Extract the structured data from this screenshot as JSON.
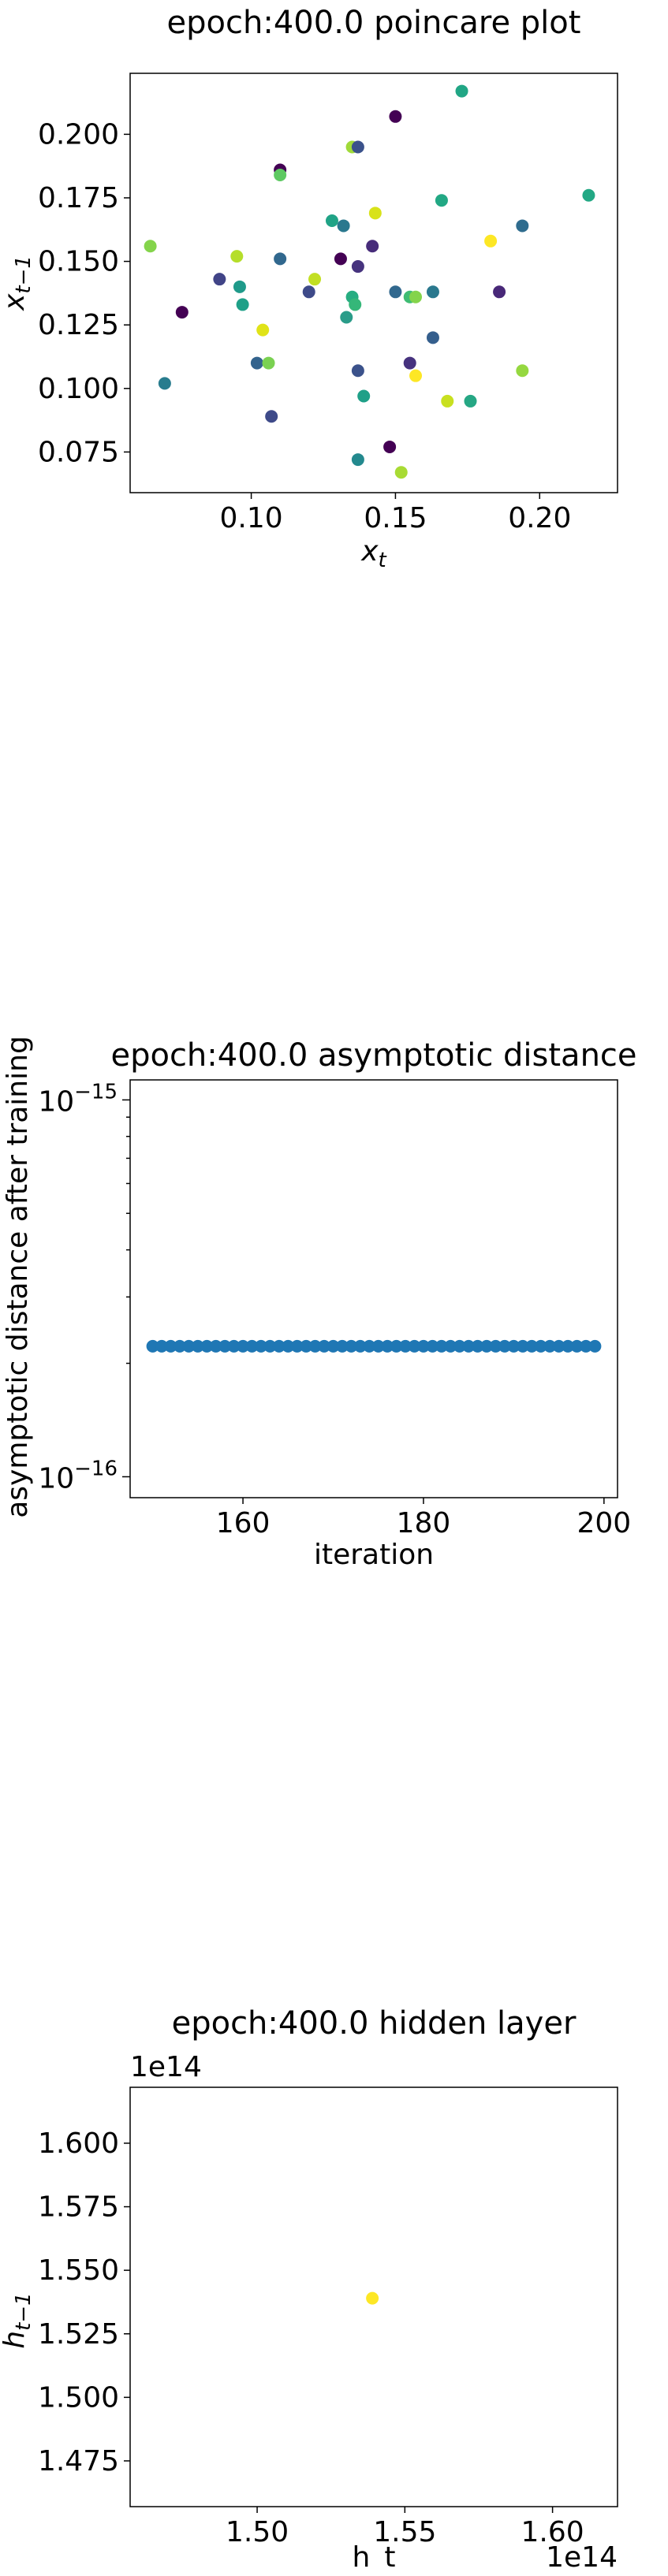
{
  "colors": {
    "single_point": "#2c7bb6",
    "background": "#ffffff",
    "axes": "#000000"
  },
  "chart_data": [
    {
      "type": "scatter",
      "title": "epoch:400.0 poincare plot",
      "xlabel": "x_t",
      "ylabel": "x_{t-1}",
      "xlim": [
        0.058,
        0.227
      ],
      "ylim": [
        0.059,
        0.224
      ],
      "xticks": [
        "0.10",
        "0.15",
        "0.20"
      ],
      "xtick_values": [
        0.1,
        0.15,
        0.2
      ],
      "yticks": [
        "0.075",
        "0.100",
        "0.125",
        "0.150",
        "0.175",
        "0.200"
      ],
      "ytick_values": [
        0.075,
        0.1,
        0.125,
        0.15,
        0.175,
        0.2
      ],
      "grid": false,
      "colormap": "viridis",
      "points": [
        {
          "x": 0.15,
          "y": 0.207,
          "c": "#440154"
        },
        {
          "x": 0.173,
          "y": 0.217,
          "c": "#21a685"
        },
        {
          "x": 0.217,
          "y": 0.176,
          "c": "#22a884"
        },
        {
          "x": 0.11,
          "y": 0.186,
          "c": "#440154"
        },
        {
          "x": 0.11,
          "y": 0.184,
          "c": "#5ec962"
        },
        {
          "x": 0.135,
          "y": 0.195,
          "c": "#a0da39"
        },
        {
          "x": 0.137,
          "y": 0.195,
          "c": "#3b528b"
        },
        {
          "x": 0.128,
          "y": 0.166,
          "c": "#20a386"
        },
        {
          "x": 0.132,
          "y": 0.164,
          "c": "#2a788e"
        },
        {
          "x": 0.143,
          "y": 0.169,
          "c": "#d8e219"
        },
        {
          "x": 0.166,
          "y": 0.174,
          "c": "#22a884"
        },
        {
          "x": 0.194,
          "y": 0.164,
          "c": "#2f6c8e"
        },
        {
          "x": 0.183,
          "y": 0.158,
          "c": "#fde725"
        },
        {
          "x": 0.065,
          "y": 0.156,
          "c": "#84d44b"
        },
        {
          "x": 0.095,
          "y": 0.152,
          "c": "#b5de2b"
        },
        {
          "x": 0.11,
          "y": 0.151,
          "c": "#31688e"
        },
        {
          "x": 0.131,
          "y": 0.151,
          "c": "#440154"
        },
        {
          "x": 0.142,
          "y": 0.156,
          "c": "#472c7a"
        },
        {
          "x": 0.137,
          "y": 0.148,
          "c": "#46337e"
        },
        {
          "x": 0.089,
          "y": 0.143,
          "c": "#414487"
        },
        {
          "x": 0.096,
          "y": 0.14,
          "c": "#1f9a8a"
        },
        {
          "x": 0.122,
          "y": 0.143,
          "c": "#c2df23"
        },
        {
          "x": 0.076,
          "y": 0.13,
          "c": "#440154"
        },
        {
          "x": 0.097,
          "y": 0.133,
          "c": "#1fa088"
        },
        {
          "x": 0.12,
          "y": 0.138,
          "c": "#3e4a89"
        },
        {
          "x": 0.135,
          "y": 0.136,
          "c": "#27ad81"
        },
        {
          "x": 0.136,
          "y": 0.133,
          "c": "#35b779"
        },
        {
          "x": 0.15,
          "y": 0.138,
          "c": "#31688e"
        },
        {
          "x": 0.155,
          "y": 0.136,
          "c": "#3fbc73"
        },
        {
          "x": 0.157,
          "y": 0.136,
          "c": "#84d44b"
        },
        {
          "x": 0.163,
          "y": 0.138,
          "c": "#2a788e"
        },
        {
          "x": 0.186,
          "y": 0.138,
          "c": "#482878"
        },
        {
          "x": 0.133,
          "y": 0.128,
          "c": "#2a9c89"
        },
        {
          "x": 0.104,
          "y": 0.123,
          "c": "#e0e318"
        },
        {
          "x": 0.163,
          "y": 0.12,
          "c": "#355f8d"
        },
        {
          "x": 0.07,
          "y": 0.102,
          "c": "#287c8e"
        },
        {
          "x": 0.102,
          "y": 0.11,
          "c": "#33638d"
        },
        {
          "x": 0.106,
          "y": 0.11,
          "c": "#7ad151"
        },
        {
          "x": 0.137,
          "y": 0.107,
          "c": "#3b528b"
        },
        {
          "x": 0.155,
          "y": 0.11,
          "c": "#46327e"
        },
        {
          "x": 0.157,
          "y": 0.105,
          "c": "#fde725"
        },
        {
          "x": 0.194,
          "y": 0.107,
          "c": "#95d840"
        },
        {
          "x": 0.139,
          "y": 0.097,
          "c": "#1fa088"
        },
        {
          "x": 0.168,
          "y": 0.095,
          "c": "#c8e020"
        },
        {
          "x": 0.176,
          "y": 0.095,
          "c": "#26a784"
        },
        {
          "x": 0.107,
          "y": 0.089,
          "c": "#3e4a89"
        },
        {
          "x": 0.148,
          "y": 0.077,
          "c": "#440154"
        },
        {
          "x": 0.137,
          "y": 0.072,
          "c": "#23898e"
        },
        {
          "x": 0.152,
          "y": 0.067,
          "c": "#a8db34"
        }
      ]
    },
    {
      "type": "scatter",
      "title": "epoch:400.0 asymptotic distance",
      "xlabel": "iteration",
      "ylabel": "asymptotic distance after training",
      "xlim": [
        147.5,
        201.5
      ],
      "yscale": "log",
      "ylim": [
        8.8e-17,
        1.13e-15
      ],
      "xticks": [
        "160",
        "180",
        "200"
      ],
      "xtick_values": [
        160,
        180,
        200
      ],
      "ytick_labels": [
        {
          "base": "10",
          "exp": "−15",
          "value": 1e-15
        },
        {
          "base": "10",
          "exp": "−16",
          "value": 1e-16
        }
      ],
      "grid": false,
      "x": [
        150,
        151,
        152,
        153,
        154,
        155,
        156,
        157,
        158,
        159,
        160,
        161,
        162,
        163,
        164,
        165,
        166,
        167,
        168,
        169,
        170,
        171,
        172,
        173,
        174,
        175,
        176,
        177,
        178,
        179,
        180,
        181,
        182,
        183,
        184,
        185,
        186,
        187,
        188,
        189,
        190,
        191,
        192,
        193,
        194,
        195,
        196,
        197,
        198,
        199
      ],
      "y_value": 2.22e-16,
      "point_color": "#1f77b4"
    },
    {
      "type": "scatter",
      "title": "epoch:400.0 hidden layer",
      "xlabel": "h_t",
      "ylabel": "h_{t-1}",
      "x_offset_label": "1e14",
      "y_offset_label": "1e14",
      "xlim": [
        1.457,
        1.622
      ],
      "ylim": [
        1.457,
        1.622
      ],
      "xticks": [
        "1.50",
        "1.55",
        "1.60"
      ],
      "xtick_values": [
        1.5,
        1.55,
        1.6
      ],
      "yticks": [
        "1.475",
        "1.500",
        "1.525",
        "1.550",
        "1.575",
        "1.600"
      ],
      "ytick_values": [
        1.475,
        1.5,
        1.525,
        1.55,
        1.575,
        1.6
      ],
      "grid": false,
      "points": [
        {
          "x": 1.539,
          "y": 1.539,
          "c": "#fde725"
        }
      ]
    }
  ]
}
